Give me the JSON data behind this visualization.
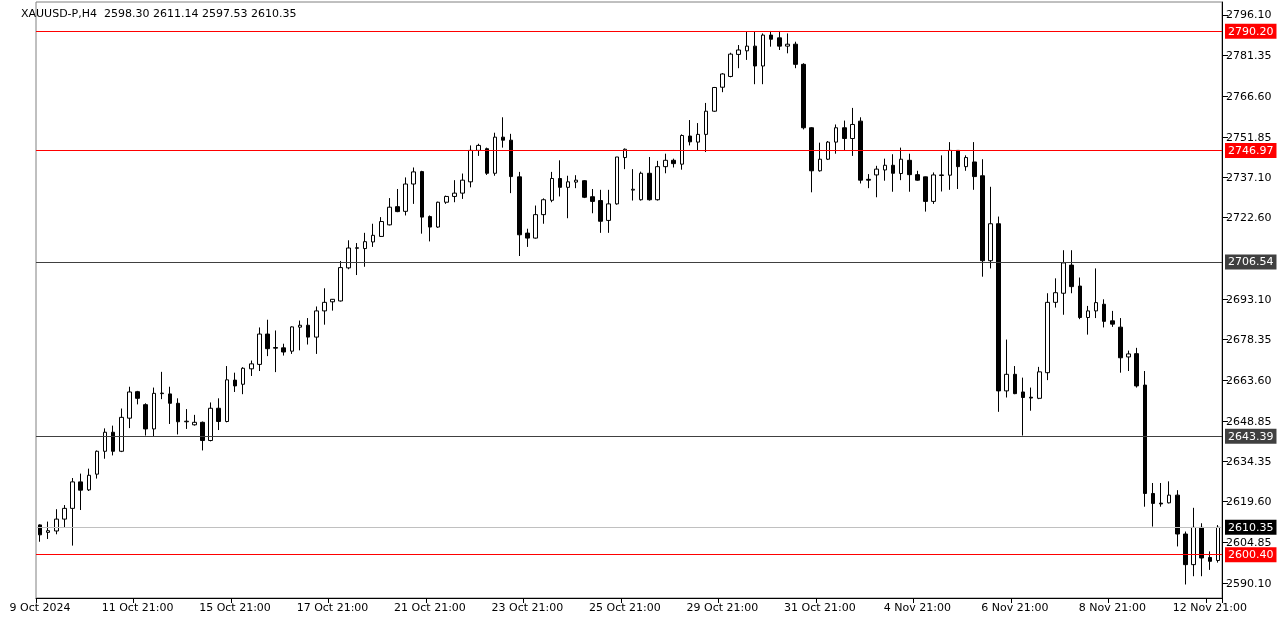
{
  "chart_data": {
    "type": "candlestick",
    "title": "XAUUSD-P,H4  2598.30 2611.14 2597.53 2610.35",
    "categories": [
      "9 Oct 2024",
      null,
      null,
      null,
      null,
      null,
      null,
      null,
      null,
      null,
      null,
      null,
      "11 Oct 21:00",
      null,
      null,
      null,
      null,
      null,
      null,
      null,
      null,
      null,
      null,
      null,
      "15 Oct 21:00",
      null,
      null,
      null,
      null,
      null,
      null,
      null,
      null,
      null,
      null,
      null,
      "17 Oct 21:00",
      null,
      null,
      null,
      null,
      null,
      null,
      null,
      null,
      null,
      null,
      null,
      "21 Oct 21:00",
      null,
      null,
      null,
      null,
      null,
      null,
      null,
      null,
      null,
      null,
      null,
      "23 Oct 21:00",
      null,
      null,
      null,
      null,
      null,
      null,
      null,
      null,
      null,
      null,
      null,
      "25 Oct 21:00",
      null,
      null,
      null,
      null,
      null,
      null,
      null,
      null,
      null,
      null,
      null,
      "29 Oct 21:00",
      null,
      null,
      null,
      null,
      null,
      null,
      null,
      null,
      null,
      null,
      null,
      "31 Oct 21:00",
      null,
      null,
      null,
      null,
      null,
      null,
      null,
      null,
      null,
      null,
      null,
      "4 Nov 21:00",
      null,
      null,
      null,
      null,
      null,
      null,
      null,
      null,
      null,
      null,
      null,
      "6 Nov 21:00",
      null,
      null,
      null,
      null,
      null,
      null,
      null,
      null,
      null,
      null,
      null,
      "8 Nov 21:00",
      null,
      null,
      null,
      null,
      null,
      null,
      null,
      null,
      null,
      null,
      null,
      "12 Nov 21:00",
      null
    ],
    "series": [
      {
        "color": "#000000",
        "ohlc": [
          [
            2611.2,
            2611.4,
            2605.1,
            2607.6
          ],
          [
            2608.5,
            2612.4,
            2606.1,
            2609.1
          ],
          [
            2609.0,
            2616.9,
            2607.8,
            2613.3
          ],
          [
            2613.3,
            2618.4,
            2610.2,
            2617.2
          ],
          [
            2617.2,
            2628.2,
            2603.7,
            2626.8
          ],
          [
            2626.8,
            2629.8,
            2616.6,
            2623.8
          ],
          [
            2623.9,
            2631.6,
            2623.5,
            2629.2
          ],
          [
            2629.6,
            2638.2,
            2628.0,
            2637.9
          ],
          [
            2637.9,
            2646.2,
            2635.2,
            2644.8
          ],
          [
            2644.8,
            2647.2,
            2636.4,
            2637.9
          ],
          [
            2637.9,
            2653.4,
            2637.6,
            2650.2
          ],
          [
            2649.9,
            2661.3,
            2646.3,
            2659.4
          ],
          [
            2659.5,
            2659.8,
            2654.9,
            2657.1
          ],
          [
            2654.8,
            2655.3,
            2643.6,
            2646.0
          ],
          [
            2646.0,
            2661.0,
            2643.3,
            2658.9
          ],
          [
            2658.8,
            2666.7,
            2656.8,
            2659.0
          ],
          [
            2658.7,
            2661.3,
            2647.8,
            2655.3
          ],
          [
            2655.3,
            2657.1,
            2644.0,
            2648.6
          ],
          [
            2648.6,
            2653.2,
            2646.0,
            2648.8
          ],
          [
            2647.5,
            2651.1,
            2647.2,
            2648.4
          ],
          [
            2648.4,
            2648.7,
            2638.2,
            2641.8
          ],
          [
            2641.8,
            2655.6,
            2641.5,
            2653.5
          ],
          [
            2653.5,
            2657.1,
            2645.6,
            2648.7
          ],
          [
            2648.7,
            2668.8,
            2648.4,
            2663.8
          ],
          [
            2663.7,
            2666.4,
            2659.4,
            2661.6
          ],
          [
            2662.2,
            2668.4,
            2658.6,
            2668.0
          ],
          [
            2667.8,
            2670.8,
            2665.2,
            2669.6
          ],
          [
            2669.4,
            2682.8,
            2667.0,
            2680.4
          ],
          [
            2680.4,
            2685.6,
            2672.4,
            2675.1
          ],
          [
            2675.5,
            2681.7,
            2666.6,
            2675.3
          ],
          [
            2675.4,
            2676.9,
            2672.6,
            2673.9
          ],
          [
            2674.2,
            2683.2,
            2673.2,
            2683.0
          ],
          [
            2682.9,
            2685.3,
            2674.5,
            2683.6
          ],
          [
            2683.6,
            2686.2,
            2676.6,
            2679.3
          ],
          [
            2679.3,
            2690.4,
            2673.2,
            2688.8
          ],
          [
            2688.8,
            2697.0,
            2683.8,
            2691.9
          ],
          [
            2692.1,
            2693.1,
            2688.9,
            2693.0
          ],
          [
            2692.4,
            2706.9,
            2692.2,
            2704.5
          ],
          [
            2704.4,
            2714.4,
            2703.9,
            2711.6
          ],
          [
            2711.5,
            2713.4,
            2701.8,
            2711.7
          ],
          [
            2711.4,
            2717.1,
            2704.8,
            2713.9
          ],
          [
            2713.8,
            2720.4,
            2712.0,
            2716.2
          ],
          [
            2715.8,
            2722.8,
            2715.6,
            2721.2
          ],
          [
            2720.0,
            2729.7,
            2719.8,
            2726.4
          ],
          [
            2726.6,
            2733.0,
            2724.6,
            2724.8
          ],
          [
            2724.9,
            2737.2,
            2723.4,
            2734.8
          ],
          [
            2734.8,
            2740.8,
            2727.6,
            2739.2
          ],
          [
            2739.3,
            2739.6,
            2716.8,
            2722.8
          ],
          [
            2723.0,
            2723.4,
            2714.0,
            2719.2
          ],
          [
            2719.2,
            2728.4,
            2718.9,
            2728.2
          ],
          [
            2728.2,
            2730.6,
            2727.6,
            2730.3
          ],
          [
            2730.3,
            2736.2,
            2728.2,
            2731.5
          ],
          [
            2731.5,
            2738.6,
            2729.4,
            2736.2
          ],
          [
            2735.6,
            2748.8,
            2733.6,
            2747.0
          ],
          [
            2747.0,
            2749.4,
            2745.0,
            2748.8
          ],
          [
            2747.6,
            2748.0,
            2738.1,
            2738.7
          ],
          [
            2738.7,
            2753.4,
            2737.8,
            2751.8
          ],
          [
            2751.8,
            2759.0,
            2748.0,
            2750.7
          ],
          [
            2750.7,
            2753.0,
            2731.5,
            2737.5
          ],
          [
            2737.4,
            2739.2,
            2708.7,
            2716.4
          ],
          [
            2717.0,
            2718.6,
            2712.0,
            2715.2
          ],
          [
            2715.2,
            2727.0,
            2715.0,
            2723.7
          ],
          [
            2723.7,
            2729.6,
            2720.4,
            2729.1
          ],
          [
            2728.9,
            2739.2,
            2728.2,
            2736.8
          ],
          [
            2736.8,
            2743.4,
            2730.3,
            2733.6
          ],
          [
            2733.6,
            2737.8,
            2722.4,
            2735.6
          ],
          [
            2735.5,
            2738.0,
            2733.3,
            2736.2
          ],
          [
            2736.0,
            2736.2,
            2729.7,
            2730.0
          ],
          [
            2730.2,
            2733.0,
            2724.2,
            2728.5
          ],
          [
            2728.8,
            2732.7,
            2717.1,
            2721.3
          ],
          [
            2721.6,
            2732.7,
            2717.1,
            2727.6
          ],
          [
            2727.6,
            2744.6,
            2727.3,
            2744.6
          ],
          [
            2744.4,
            2747.7,
            2740.2,
            2747.4
          ],
          [
            2732.6,
            2740.2,
            2728.8,
            2732.9
          ],
          [
            2729.1,
            2739.3,
            2728.8,
            2738.7
          ],
          [
            2738.7,
            2744.6,
            2728.8,
            2729.1
          ],
          [
            2729.1,
            2743.2,
            2728.8,
            2741.1
          ],
          [
            2741.1,
            2745.8,
            2738.7,
            2743.4
          ],
          [
            2743.4,
            2744.0,
            2740.8,
            2742.2
          ],
          [
            2742.0,
            2752.8,
            2740.0,
            2752.4
          ],
          [
            2752.2,
            2758.0,
            2748.8,
            2750.1
          ],
          [
            2750.0,
            2756.9,
            2746.8,
            2752.8
          ],
          [
            2752.8,
            2764.2,
            2746.4,
            2761.2
          ],
          [
            2761.2,
            2770.0,
            2761.0,
            2769.8
          ],
          [
            2769.9,
            2775.0,
            2768.1,
            2774.7
          ],
          [
            2773.8,
            2782.4,
            2773.5,
            2781.9
          ],
          [
            2781.8,
            2785.2,
            2776.8,
            2783.4
          ],
          [
            2783.1,
            2790.0,
            2779.8,
            2784.8
          ],
          [
            2784.8,
            2790.0,
            2771.0,
            2777.6
          ],
          [
            2777.6,
            2789.4,
            2771.0,
            2788.8
          ],
          [
            2788.8,
            2790.3,
            2784.6,
            2787.3
          ],
          [
            2787.8,
            2790.3,
            2783.4,
            2784.8
          ],
          [
            2784.8,
            2789.4,
            2782.2,
            2785.5
          ],
          [
            2785.5,
            2786.4,
            2776.8,
            2778.2
          ],
          [
            2778.2,
            2778.6,
            2754.6,
            2755.2
          ],
          [
            2755.2,
            2755.4,
            2731.8,
            2739.6
          ],
          [
            2739.6,
            2749.8,
            2739.3,
            2743.8
          ],
          [
            2743.8,
            2750.4,
            2743.5,
            2750.0
          ],
          [
            2750.0,
            2756.4,
            2745.8,
            2755.2
          ],
          [
            2755.2,
            2757.8,
            2747.0,
            2751.3
          ],
          [
            2751.3,
            2762.4,
            2745.0,
            2756.4
          ],
          [
            2757.6,
            2759.0,
            2735.0,
            2736.2
          ],
          [
            2736.5,
            2738.4,
            2733.3,
            2736.2
          ],
          [
            2738.1,
            2741.4,
            2730.0,
            2740.2
          ],
          [
            2739.9,
            2744.0,
            2736.0,
            2741.6
          ],
          [
            2741.6,
            2745.6,
            2732.0,
            2738.7
          ],
          [
            2738.6,
            2748.0,
            2736.2,
            2743.8
          ],
          [
            2743.4,
            2745.8,
            2732.0,
            2738.2
          ],
          [
            2738.2,
            2739.6,
            2736.0,
            2736.2
          ],
          [
            2737.4,
            2737.5,
            2724.8,
            2728.5
          ],
          [
            2728.5,
            2739.0,
            2727.6,
            2738.1
          ],
          [
            2737.9,
            2745.2,
            2732.1,
            2738.1
          ],
          [
            2738.0,
            2750.0,
            2732.7,
            2747.0
          ],
          [
            2747.0,
            2747.0,
            2733.0,
            2741.1
          ],
          [
            2741.1,
            2745.2,
            2739.6,
            2744.4
          ],
          [
            2742.8,
            2750.0,
            2732.7,
            2737.5
          ],
          [
            2737.8,
            2743.8,
            2701.2,
            2707.0
          ],
          [
            2707.0,
            2733.8,
            2704.2,
            2720.4
          ],
          [
            2720.4,
            2723.0,
            2652.2,
            2659.8
          ],
          [
            2659.8,
            2678.4,
            2657.4,
            2665.8
          ],
          [
            2665.8,
            2668.8,
            2658.6,
            2658.8
          ],
          [
            2659.4,
            2664.6,
            2643.6,
            2657.4
          ],
          [
            2657.5,
            2661.0,
            2652.6,
            2657.2
          ],
          [
            2657.1,
            2668.5,
            2656.8,
            2666.7
          ],
          [
            2666.4,
            2695.2,
            2663.7,
            2691.9
          ],
          [
            2691.9,
            2700.6,
            2690.0,
            2695.4
          ],
          [
            2695.2,
            2710.8,
            2687.4,
            2706.2
          ],
          [
            2705.4,
            2710.8,
            2695.2,
            2697.6
          ],
          [
            2697.8,
            2700.9,
            2685.8,
            2686.4
          ],
          [
            2686.4,
            2690.6,
            2680.2,
            2688.8
          ],
          [
            2688.8,
            2704.2,
            2686.2,
            2691.8
          ],
          [
            2691.2,
            2693.0,
            2682.8,
            2685.0
          ],
          [
            2685.2,
            2688.8,
            2683.0,
            2684.0
          ],
          [
            2682.9,
            2686.2,
            2666.4,
            2671.8
          ],
          [
            2672.1,
            2674.4,
            2667.0,
            2673.2
          ],
          [
            2673.3,
            2675.4,
            2661.0,
            2661.6
          ],
          [
            2661.9,
            2667.0,
            2617.8,
            2622.6
          ],
          [
            2622.6,
            2626.4,
            2610.6,
            2619.0
          ],
          [
            2619.1,
            2626.4,
            2617.8,
            2618.8
          ],
          [
            2619.2,
            2627.0,
            2619.0,
            2622.0
          ],
          [
            2622.0,
            2623.8,
            2603.4,
            2607.9
          ],
          [
            2607.9,
            2608.8,
            2589.6,
            2596.8
          ],
          [
            2596.8,
            2617.4,
            2592.6,
            2610.3
          ],
          [
            2610.3,
            2611.8,
            2592.6,
            2599.2
          ],
          [
            2599.4,
            2601.6,
            2594.9,
            2598.0
          ],
          [
            2598.3,
            2611.14,
            2597.53,
            2610.35
          ]
        ]
      }
    ],
    "ylim": [
      2584.7,
      2800.8
    ],
    "yticks": [
      {
        "value": 2796.1,
        "label": "2796.10"
      },
      {
        "value": 2781.35,
        "label": "2781.35"
      },
      {
        "value": 2766.6,
        "label": "2766.60"
      },
      {
        "value": 2751.85,
        "label": "2751.85"
      },
      {
        "value": 2737.1,
        "label": "2737.10"
      },
      {
        "value": 2722.6,
        "label": "2722.60"
      },
      {
        "value": 2693.1,
        "label": "2693.10"
      },
      {
        "value": 2678.35,
        "label": "2678.35"
      },
      {
        "value": 2663.6,
        "label": "2663.60"
      },
      {
        "value": 2648.85,
        "label": "2648.85"
      },
      {
        "value": 2634.35,
        "label": "2634.35"
      },
      {
        "value": 2619.6,
        "label": "2619.60"
      },
      {
        "value": 2604.85,
        "label": "2604.85"
      },
      {
        "value": 2590.1,
        "label": "2590.10"
      }
    ],
    "ref_lines": [
      {
        "axis": "y",
        "value": 2790.2,
        "label": "2790.20",
        "color": "#ff0000"
      },
      {
        "axis": "y",
        "value": 2746.97,
        "label": "2746.97",
        "color": "#ff0000"
      },
      {
        "axis": "y",
        "value": 2706.54,
        "label": "2706.54",
        "color": "#404040"
      },
      {
        "axis": "y",
        "value": 2643.39,
        "label": "2643.39",
        "color": "#404040"
      },
      {
        "axis": "y",
        "value": 2610.35,
        "label": "2610.35",
        "color": "#c0c0c0"
      },
      {
        "axis": "y",
        "value": 2600.4,
        "label": "2600.40",
        "color": "#ff0000"
      }
    ],
    "grid": false
  }
}
